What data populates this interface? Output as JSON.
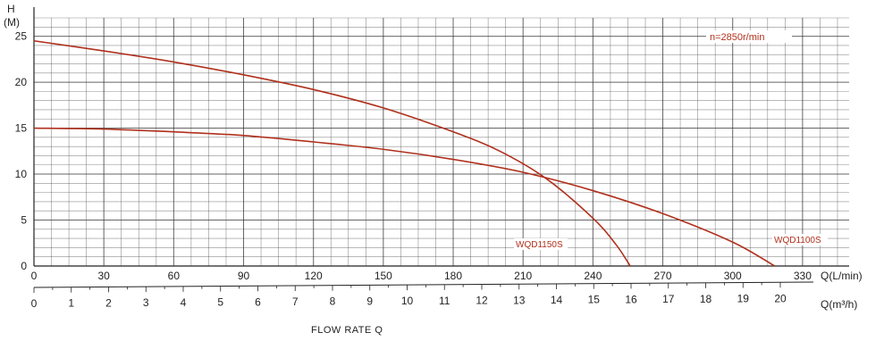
{
  "chart_data": {
    "type": "line",
    "title": "",
    "annotation": "n=2850r/min",
    "ylabel": "H",
    "yunit": "(M)",
    "xlabel": "Q(L/min)",
    "x2label": "Q(m³/h)",
    "caption": "FLOW   RATE Q",
    "xlim": [
      0,
      350
    ],
    "ylim": [
      0,
      27
    ],
    "x_ticks": [
      0,
      30,
      60,
      90,
      120,
      150,
      180,
      210,
      240,
      270,
      300,
      330
    ],
    "x2_ticks": [
      0,
      1,
      2,
      3,
      4,
      5,
      6,
      7,
      8,
      9,
      10,
      11,
      12,
      13,
      14,
      15,
      16,
      17,
      18,
      19,
      20
    ],
    "y_ticks": [
      0,
      5,
      10,
      15,
      20,
      25
    ],
    "grid": true,
    "series": [
      {
        "name": "WQD1150S",
        "color": "#b0301c",
        "x": [
          0,
          30,
          60,
          90,
          120,
          150,
          180,
          200,
          220,
          240,
          250,
          256
        ],
        "y": [
          24.5,
          23.4,
          22.2,
          20.8,
          19.2,
          17.2,
          14.6,
          12.5,
          9.5,
          5.2,
          2.3,
          0
        ]
      },
      {
        "name": "WQD1100S",
        "color": "#b0301c",
        "x": [
          0,
          30,
          60,
          90,
          120,
          150,
          180,
          210,
          240,
          270,
          300,
          318
        ],
        "y": [
          15.0,
          14.9,
          14.6,
          14.2,
          13.5,
          12.7,
          11.6,
          10.2,
          8.2,
          5.7,
          2.6,
          0
        ]
      }
    ]
  }
}
